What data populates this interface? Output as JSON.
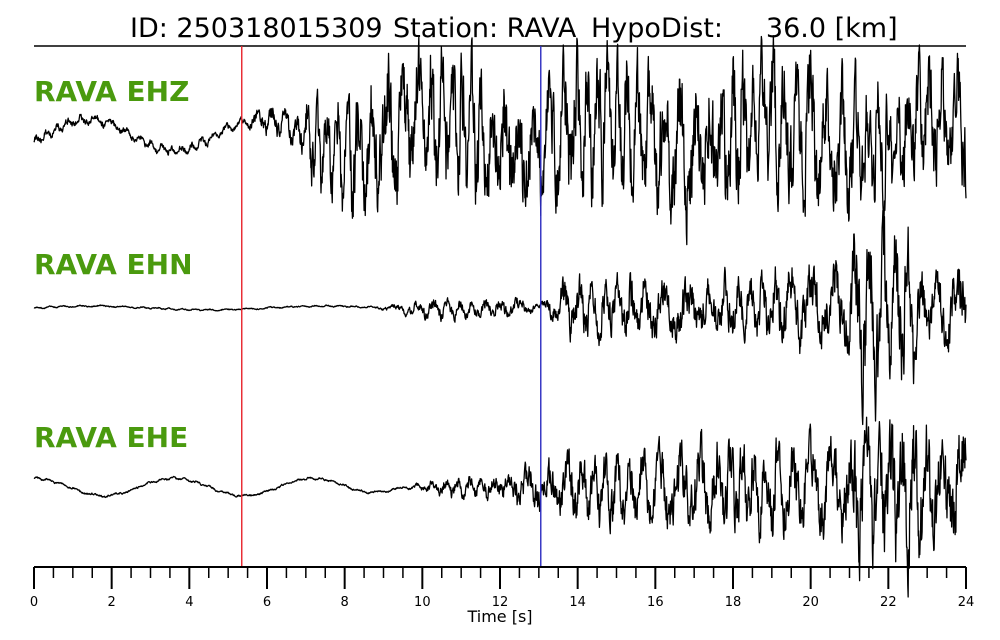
{
  "header": {
    "id_text": "ID: 250318015309",
    "station_text": "Station: RAVA",
    "dist_text": "HypoDist:     36.0 [km]"
  },
  "chart_data": {
    "type": "line",
    "title": "ID: 250318015309   Station: RAVA   HypoDist:     36.0 [km]",
    "xlabel": "Time [s]",
    "xlim": [
      0,
      24
    ],
    "x_ticks": [
      "0",
      "2",
      "4",
      "6",
      "8",
      "10",
      "12",
      "14",
      "16",
      "18",
      "20",
      "22",
      "24"
    ],
    "minor_tick_step": 0.5,
    "grid": false,
    "picks": [
      {
        "phase": "P",
        "time": 5.35,
        "color": "#e8212a"
      },
      {
        "phase": "S",
        "time": 13.05,
        "color": "#2b2bc0"
      }
    ],
    "series": [
      {
        "name": "RAVA EHZ"
      },
      {
        "name": "RAVA EHN"
      },
      {
        "name": "RAVA EHE"
      }
    ],
    "label_color": "#4a9a0e",
    "trace_color": "#000000"
  }
}
